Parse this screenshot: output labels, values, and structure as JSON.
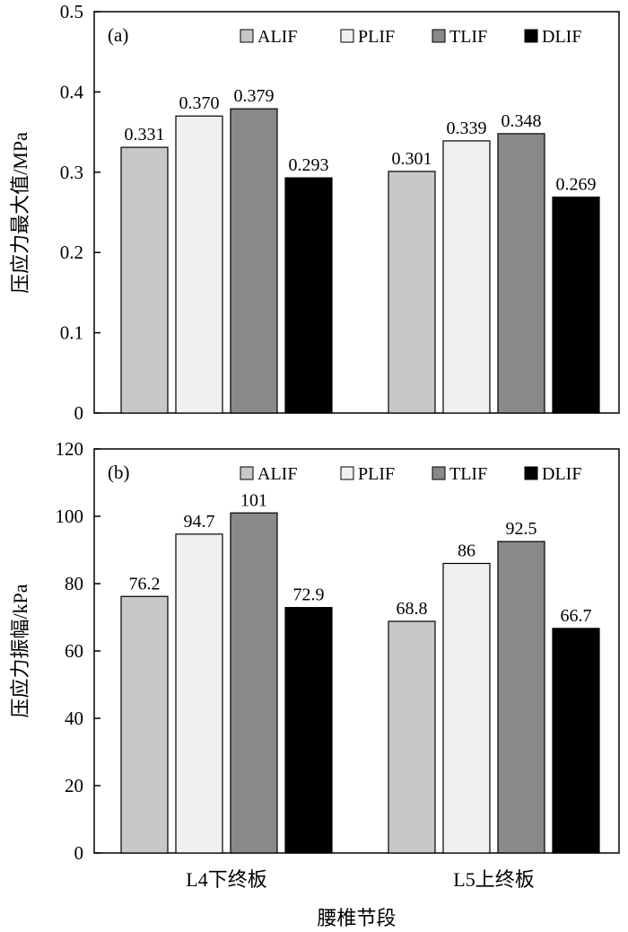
{
  "chart_data": [
    {
      "type": "bar",
      "panel_label": "(a)",
      "ylabel": "压应力最大值/MPa",
      "ylim": [
        0,
        0.5
      ],
      "yticks": [
        "0",
        "0.1",
        "0.2",
        "0.3",
        "0.4",
        "0.5"
      ],
      "categories": [
        "L4下终板",
        "L5上终板"
      ],
      "series": [
        {
          "name": "ALIF",
          "values": [
            0.331,
            0.301
          ],
          "labels": [
            "0.331",
            "0.301"
          ],
          "color": "#c8c8c8"
        },
        {
          "name": "PLIF",
          "values": [
            0.37,
            0.339
          ],
          "labels": [
            "0.370",
            "0.339"
          ],
          "color": "#f0f0f0"
        },
        {
          "name": "TLIF",
          "values": [
            0.379,
            0.348
          ],
          "labels": [
            "0.379",
            "0.348"
          ],
          "color": "#898989"
        },
        {
          "name": "DLIF",
          "values": [
            0.293,
            0.269
          ],
          "labels": [
            "0.293",
            "0.269"
          ],
          "color": "#000000"
        }
      ],
      "legend_position": "top-right",
      "grid": false
    },
    {
      "type": "bar",
      "panel_label": "(b)",
      "ylabel": "压应力振幅/kPa",
      "xlabel": "腰椎节段",
      "ylim": [
        0,
        120
      ],
      "yticks": [
        "0",
        "20",
        "40",
        "60",
        "80",
        "100",
        "120"
      ],
      "categories": [
        "L4下终板",
        "L5上终板"
      ],
      "series": [
        {
          "name": "ALIF",
          "values": [
            76.2,
            68.8
          ],
          "labels": [
            "76.2",
            "68.8"
          ],
          "color": "#c8c8c8"
        },
        {
          "name": "PLIF",
          "values": [
            94.7,
            86
          ],
          "labels": [
            "94.7",
            "86"
          ],
          "color": "#f0f0f0"
        },
        {
          "name": "TLIF",
          "values": [
            101,
            92.5
          ],
          "labels": [
            "101",
            "92.5"
          ],
          "color": "#898989"
        },
        {
          "name": "DLIF",
          "values": [
            72.9,
            66.7
          ],
          "labels": [
            "72.9",
            "66.7"
          ],
          "color": "#000000"
        }
      ],
      "legend_position": "top-right",
      "grid": false
    }
  ]
}
